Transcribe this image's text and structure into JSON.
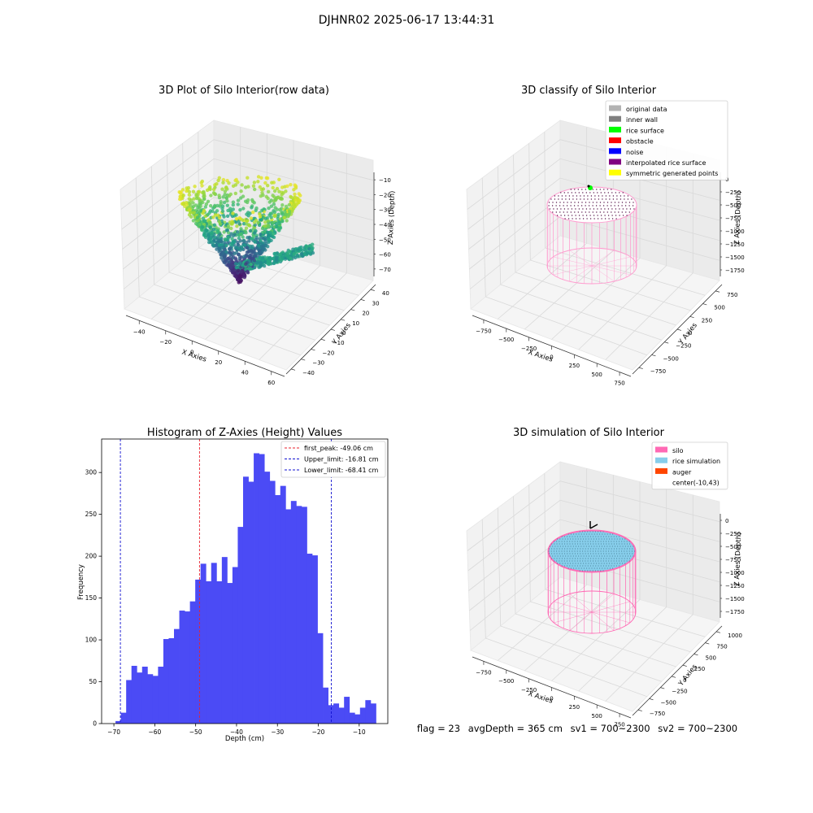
{
  "figure": {
    "suptitle": "DJHNR02 2025-06-17 13:44:31",
    "stats": {
      "flag": "flag = 23",
      "avg_depth": "avgDepth = 365 cm",
      "sv1": "sv1 = 700~2300",
      "sv2": "sv2 = 700~2300"
    }
  },
  "chart_data": [
    {
      "type": "scatter",
      "projection": "3d",
      "title": "3D Plot of Silo Interior(row data)",
      "xlabel": "X Axies",
      "ylabel": "Y Axies",
      "zlabel": "Z Axies (Depth)",
      "xticks": [
        "−40",
        "−20",
        "0",
        "20",
        "40",
        "60"
      ],
      "yticks": [
        "−40",
        "−30",
        "−20",
        "−10",
        "0",
        "10",
        "20",
        "30",
        "40"
      ],
      "zticks": [
        "−10",
        "−20",
        "−30",
        "−40",
        "−50",
        "−60",
        "−70"
      ],
      "colormap": "viridis",
      "zlim": [
        -72,
        -5
      ],
      "grid": true
    },
    {
      "type": "scatter",
      "projection": "3d",
      "title": "3D classify of Silo Interior",
      "xlabel": "X Axies",
      "ylabel": "Y Axies",
      "zlabel": "Z Axies (Depth)",
      "xticks": [
        "−750",
        "−500",
        "−250",
        "0",
        "250",
        "500",
        "750"
      ],
      "yticks": [
        "−750",
        "−500",
        "−250",
        "0",
        "250",
        "500",
        "750"
      ],
      "zticks": [
        "0",
        "−250",
        "−500",
        "−750",
        "−1000",
        "−1250",
        "−1500",
        "−1750"
      ],
      "legend_position": "top-right",
      "legend": [
        {
          "label": "original data",
          "color": "#b3b3b3"
        },
        {
          "label": "inner wall",
          "color": "#808080"
        },
        {
          "label": "rice surface",
          "color": "#00ff00"
        },
        {
          "label": "obstacle",
          "color": "#ff0000"
        },
        {
          "label": "noise",
          "color": "#0000ff"
        },
        {
          "label": "interpolated rice surface",
          "color": "#800080"
        },
        {
          "label": "symmetric generated points",
          "color": "#ffff00"
        }
      ],
      "grid": true
    },
    {
      "type": "bar",
      "title": "Histogram of Z-Axies (Height) Values",
      "xlabel": "Depth (cm)",
      "ylabel": "Frequency",
      "xlim": [
        -73,
        -3
      ],
      "ylim": [
        0,
        340
      ],
      "xticks": [
        -70,
        -60,
        -50,
        -40,
        -30,
        -20,
        -10
      ],
      "yticks": [
        0,
        50,
        100,
        150,
        200,
        250,
        300
      ],
      "xtick_labels": [
        "−70",
        "−60",
        "−50",
        "−40",
        "−30",
        "−20",
        "−10"
      ],
      "bar_color": "#4b4bf5",
      "bin_start": -69.6,
      "bin_width": 1.3,
      "values": [
        3,
        13,
        52,
        69,
        61,
        68,
        59,
        57,
        68,
        101,
        102,
        113,
        135,
        134,
        146,
        172,
        191,
        170,
        192,
        170,
        199,
        168,
        187,
        235,
        295,
        289,
        323,
        322,
        301,
        290,
        273,
        284,
        256,
        266,
        260,
        259,
        203,
        201,
        108,
        43,
        22,
        24,
        19,
        32,
        13,
        11,
        19,
        28,
        24
      ],
      "lines": [
        {
          "label": "first_peak: -49.06 cm",
          "x": -49.06,
          "color": "#e8222e"
        },
        {
          "label": "Upper_limit: -16.81 cm",
          "x": -16.81,
          "color": "#1010d0"
        },
        {
          "label": "Lower_limit: -68.41 cm",
          "x": -68.41,
          "color": "#1010d0"
        }
      ],
      "legend_position": "top-right"
    },
    {
      "type": "scatter",
      "projection": "3d",
      "title": "3D simulation of Silo Interior",
      "xlabel": "X Axies",
      "ylabel": "Y Axies",
      "zlabel": "Z Axies (Depth)",
      "xticks": [
        "−750",
        "−500",
        "−250",
        "0",
        "250",
        "500",
        "750"
      ],
      "yticks": [
        "−750",
        "−500",
        "−250",
        "0",
        "250",
        "500",
        "750",
        "1000"
      ],
      "zticks": [
        "0",
        "−250",
        "−500",
        "−750",
        "−1000",
        "−1250",
        "−1500",
        "−1750"
      ],
      "legend_position": "top-right",
      "legend": [
        {
          "label": "silo",
          "color": "#ff69b4"
        },
        {
          "label": "rice simulation",
          "color": "#87ceeb"
        },
        {
          "label": "auger",
          "color": "#ff4500"
        },
        {
          "label": "center(-10,43)",
          "color": ""
        }
      ],
      "grid": true
    }
  ]
}
